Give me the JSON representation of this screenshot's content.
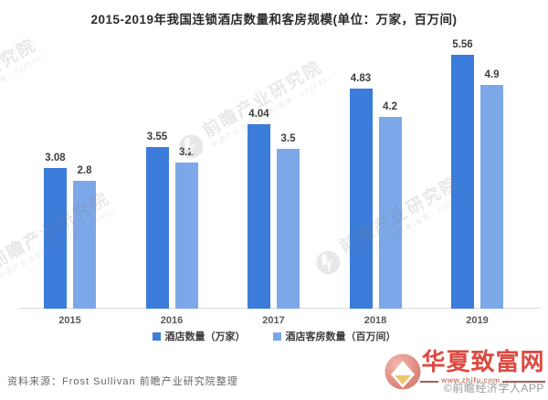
{
  "title": "2015-2019年我国连锁酒店数量和客房规模(单位：万家，百万间)",
  "chart_data": {
    "type": "bar",
    "title": "2015-2019年我国连锁酒店数量和客房规模(单位：万家，百万间)",
    "categories": [
      "2015",
      "2016",
      "2017",
      "2018",
      "2019"
    ],
    "series": [
      {
        "name": "酒店数量（万家）",
        "color": "#3c7cdb",
        "values": [
          3.08,
          3.55,
          4.04,
          4.83,
          5.56
        ],
        "labels": [
          "3.08",
          "3.55",
          "4.04",
          "4.83",
          "5.56"
        ]
      },
      {
        "name": "酒店客房数量（百万间）",
        "color": "#7ca7e8",
        "values": [
          2.8,
          3.2,
          3.5,
          4.2,
          4.9
        ],
        "labels": [
          "2.8",
          "3.2",
          "3.5",
          "4.2",
          "4.9"
        ]
      }
    ],
    "xlabel": "",
    "ylabel": "",
    "ylim": [
      0,
      6
    ],
    "grid": false,
    "legend_position": "bottom",
    "value_labels": true
  },
  "footer": {
    "source_note": "资料来源：Frost Sullivan 前瞻产业研究院整理"
  },
  "watermark": {
    "main_text": "前瞻产业研究院",
    "sub_text": "中国产业咨询领导者(股票：839599)"
  },
  "branding": {
    "site_name": "华夏致富网",
    "site_url": "www.zhifu.com",
    "copyright": "©前瞻经济学人APP",
    "brand_color": "#de4940"
  }
}
